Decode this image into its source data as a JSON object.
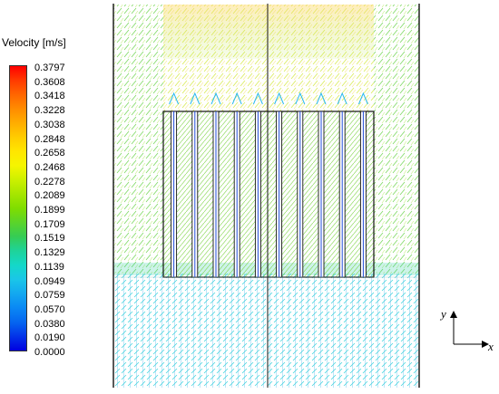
{
  "legend": {
    "title": "Velocity [m/s]",
    "ticks": [
      "0.3797",
      "0.3608",
      "0.3418",
      "0.3228",
      "0.3038",
      "0.2848",
      "0.2658",
      "0.2468",
      "0.2278",
      "0.2089",
      "0.1899",
      "0.1709",
      "0.1519",
      "0.1329",
      "0.1139",
      "0.0949",
      "0.0759",
      "0.0570",
      "0.0380",
      "0.0190",
      "0.0000"
    ],
    "colors": [
      "#ff0000",
      "#ff3a00",
      "#ff6600",
      "#ff8c00",
      "#ffad00",
      "#ffcc00",
      "#ffe600",
      "#f5f500",
      "#ccf000",
      "#a6e600",
      "#7fdd00",
      "#5ad42a",
      "#35cc55",
      "#1ed39a",
      "#14d8c8",
      "#1ac6e8",
      "#13a8f0",
      "#0a88f4",
      "#0566f0",
      "#0333e8",
      "#0000e0"
    ]
  },
  "axes": {
    "y_label": "y",
    "x_label": "x"
  },
  "chart_data": {
    "type": "vector-field",
    "quantity": "Velocity",
    "unit": "m/s",
    "range": [
      0.0,
      0.3797
    ]
  }
}
